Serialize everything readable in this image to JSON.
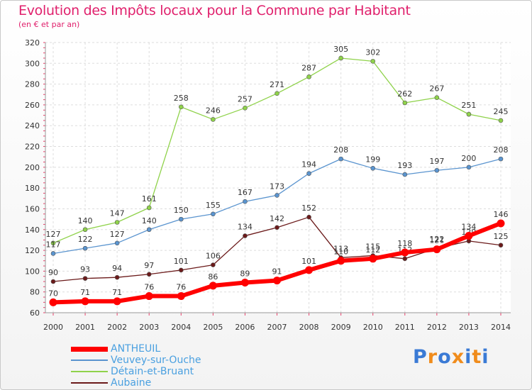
{
  "title": "Evolution des Impôts locaux pour la Commune par Habitant",
  "subtitle": "(en € et par an)",
  "logo": {
    "letters": [
      "P",
      "r",
      "o",
      "x",
      "i",
      "t",
      "i"
    ],
    "colors": [
      "#3a7ad5",
      "#f08c1c",
      "#3a7ad5",
      "#f08c1c",
      "#3a7ad5",
      "#f08c1c",
      "#3a7ad5"
    ]
  },
  "chart_data": {
    "type": "line",
    "x": [
      2000,
      2001,
      2002,
      2003,
      2004,
      2005,
      2006,
      2007,
      2008,
      2009,
      2010,
      2011,
      2012,
      2013,
      2014
    ],
    "ylim": [
      60,
      320
    ],
    "yticks": [
      60,
      80,
      100,
      120,
      140,
      160,
      180,
      200,
      220,
      240,
      260,
      280,
      300,
      320
    ],
    "grid": true,
    "legend_position": "bottom-left",
    "series": [
      {
        "name": "Détain-et-Bruant",
        "color": "#8fd24a",
        "values": [
          127,
          140,
          147,
          161,
          258,
          246,
          257,
          271,
          287,
          305,
          302,
          262,
          267,
          251,
          245
        ]
      },
      {
        "name": "Veuvey-sur-Ouche",
        "color": "#5a94cf",
        "values": [
          117,
          122,
          127,
          140,
          150,
          155,
          167,
          173,
          194,
          208,
          199,
          193,
          197,
          200,
          208
        ]
      },
      {
        "name": "Aubaine",
        "color": "#6b1a1a",
        "values": [
          90,
          93,
          94,
          97,
          101,
          106,
          134,
          142,
          152,
          113,
          115,
          112,
          122,
          129,
          125
        ]
      },
      {
        "name": "ANTHEUIL",
        "color": "#ff0000",
        "values": [
          70,
          71,
          71,
          76,
          76,
          86,
          89,
          91,
          101,
          110,
          112,
          118,
          121,
          134,
          146
        ]
      }
    ],
    "legend_order": [
      "ANTHEUIL",
      "Veuvey-sur-Ouche",
      "Détain-et-Bruant",
      "Aubaine"
    ]
  }
}
